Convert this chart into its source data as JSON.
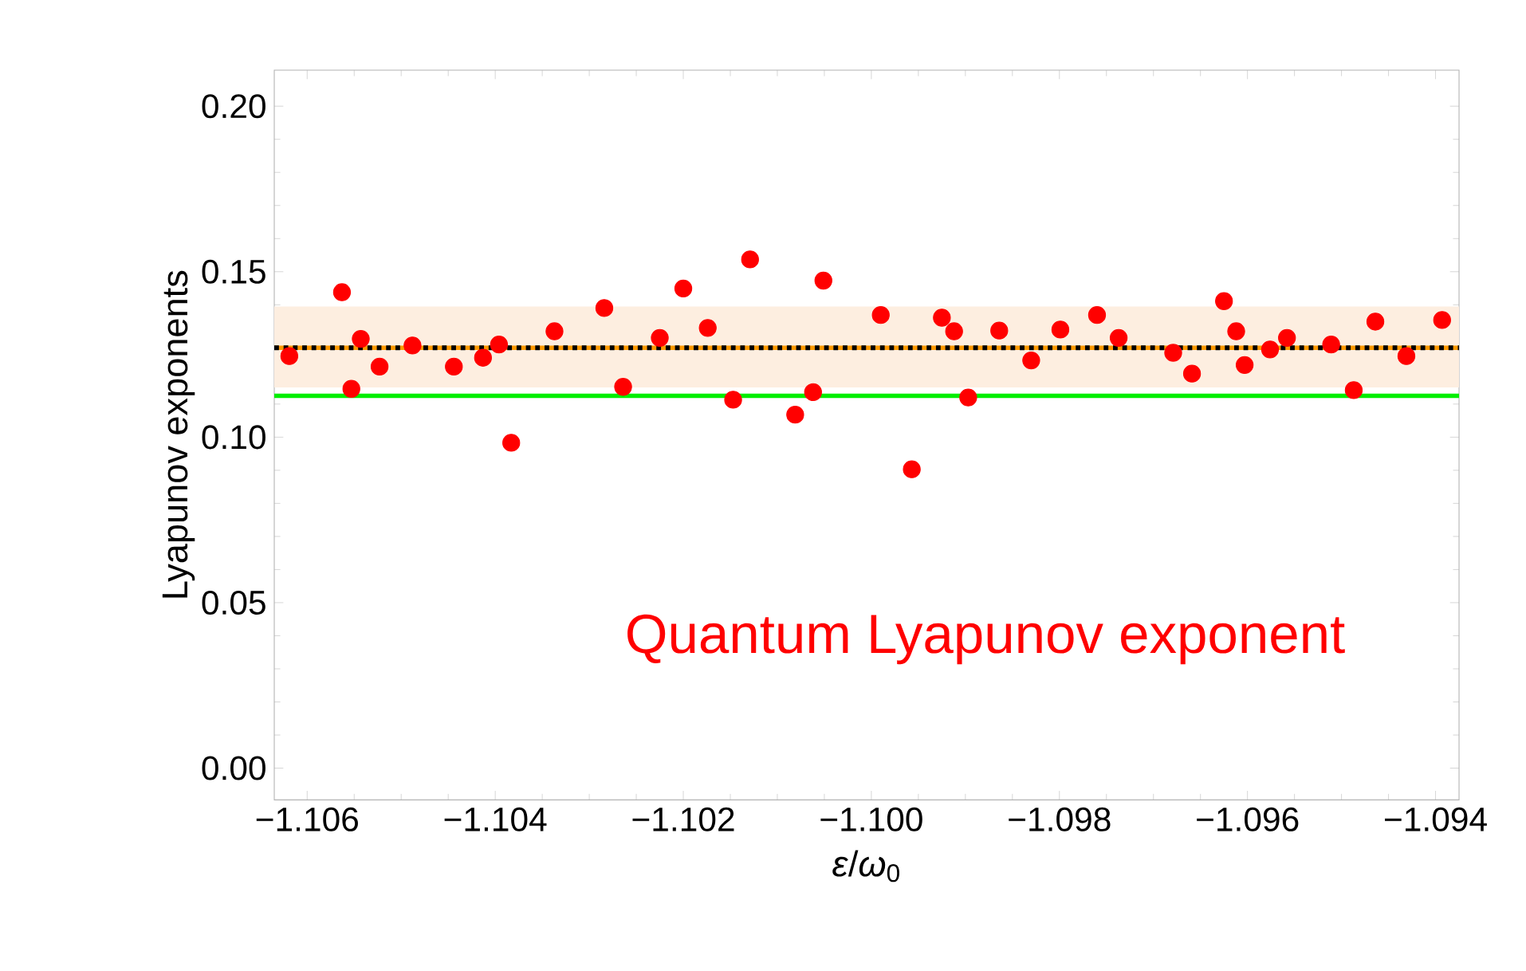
{
  "chart_data": {
    "type": "scatter",
    "xlabel": "*ε*/*ω*$_{0}$",
    "ylabel": "Lyapunov exponents",
    "annotations": [
      "Quantum Lyapunov exponent"
    ],
    "xlim": [
      -1.10635,
      -1.09375
    ],
    "ylim": [
      -0.0096,
      0.2109
    ],
    "xticks": [
      {
        "value": -1.106,
        "label": "−1.106"
      },
      {
        "value": -1.104,
        "label": "−1.104"
      },
      {
        "value": -1.102,
        "label": "−1.102"
      },
      {
        "value": -1.1,
        "label": "−1.100"
      },
      {
        "value": -1.098,
        "label": "−1.098"
      },
      {
        "value": -1.096,
        "label": "−1.096"
      },
      {
        "value": -1.094,
        "label": "−1.094"
      }
    ],
    "yticks": [
      {
        "value": 0,
        "label": "0.00"
      },
      {
        "value": 0.05,
        "label": "0.05"
      },
      {
        "value": 0.1,
        "label": "0.10"
      },
      {
        "value": 0.15,
        "label": "0.15"
      },
      {
        "value": 0.2,
        "label": "0.20"
      }
    ],
    "marker": "circle",
    "grid": false,
    "bands": [
      {
        "axis": "y",
        "from": 0.115,
        "to": 0.1395,
        "color": "#fdeee0"
      }
    ],
    "ref_lines": [
      {
        "axis": "y",
        "value": 0.127,
        "color": "#ff9900",
        "line_style": "solid"
      },
      {
        "axis": "y",
        "value": 0.127,
        "color": "#000000",
        "line_style": "dotted"
      },
      {
        "axis": "y",
        "value": 0.1125,
        "color": "#00ee00",
        "line_style": "solid"
      }
    ],
    "series": [
      {
        "color": "#ff0000",
        "x": [
          -1.10619,
          -1.10563,
          -1.10553,
          -1.10543,
          -1.10523,
          -1.10488,
          -1.10444,
          -1.10413,
          -1.10396,
          -1.10383,
          -1.10337,
          -1.10284,
          -1.10264,
          -1.10225,
          -1.102,
          -1.10174,
          -1.10147,
          -1.10129,
          -1.10081,
          -1.10062,
          -1.10051,
          -1.0999,
          -1.09957,
          -1.09925,
          -1.09912,
          -1.09897,
          -1.09864,
          -1.0983,
          -1.09799,
          -1.0976,
          -1.09737,
          -1.09679,
          -1.09659,
          -1.09625,
          -1.09612,
          -1.09603,
          -1.09576,
          -1.09558,
          -1.09511,
          -1.09487,
          -1.09464,
          -1.09431,
          -1.09393
        ],
        "values": [
          0.1245,
          0.1438,
          0.1146,
          0.1297,
          0.1213,
          0.1277,
          0.1213,
          0.124,
          0.128,
          0.0983,
          0.132,
          0.139,
          0.1152,
          0.13,
          0.1449,
          0.133,
          0.1113,
          0.1537,
          0.1068,
          0.1136,
          0.1473,
          0.1369,
          0.0903,
          0.1361,
          0.132,
          0.112,
          0.1322,
          0.1232,
          0.1325,
          0.1369,
          0.13,
          0.1255,
          0.1192,
          0.1411,
          0.132,
          0.1218,
          0.1265,
          0.13,
          0.128,
          0.1142,
          0.1349,
          0.1245,
          0.1354
        ]
      }
    ]
  }
}
